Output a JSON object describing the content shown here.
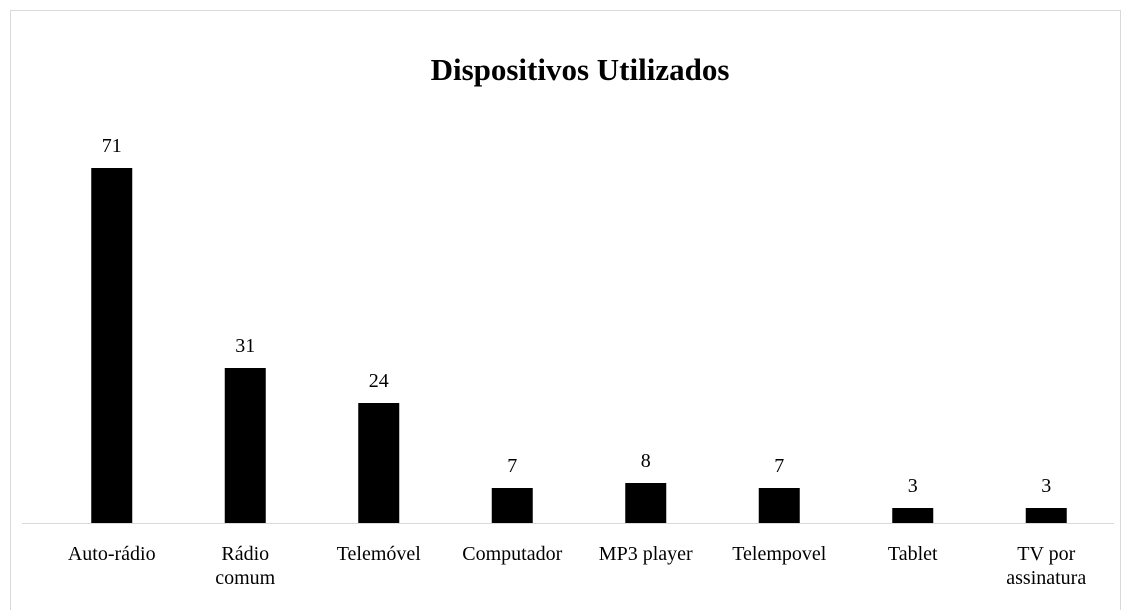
{
  "chart_data": {
    "type": "bar",
    "title": "Dispositivos Utilizados",
    "categories": [
      "Auto-rádio",
      "Rádio\ncomum",
      "Telemóvel",
      "Computador",
      "MP3 player",
      "Telempovel",
      "Tablet",
      "TV por\nassinatura"
    ],
    "values": [
      71,
      31,
      24,
      7,
      8,
      7,
      3,
      3
    ],
    "color": "#000000"
  }
}
